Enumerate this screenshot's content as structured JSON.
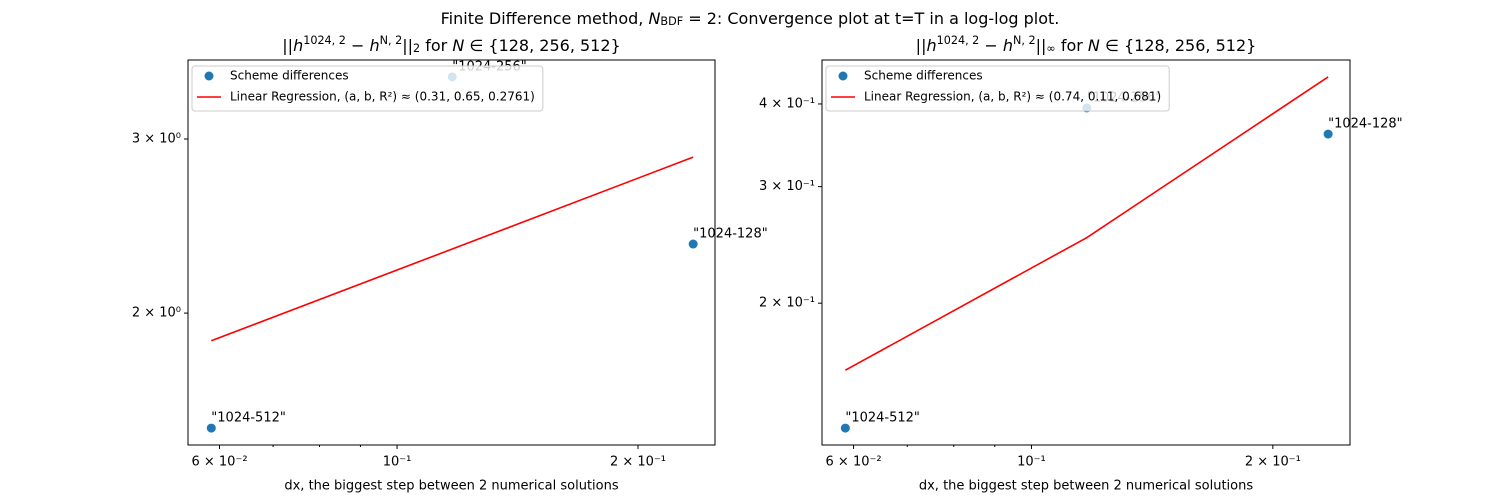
{
  "suptitle": [
    {
      "text": "Finite Difference method, "
    },
    {
      "text": "N",
      "script": "italic"
    },
    {
      "text": "BDF",
      "script": "sub"
    },
    {
      "text": " = 2: Convergence plot at t=T in a log-log plot."
    }
  ],
  "chart_data": [
    {
      "type": "scatter",
      "title": [
        {
          "text": "||"
        },
        {
          "text": "h",
          "script": "italic"
        },
        {
          "text": "1024, 2",
          "script": "sup"
        },
        {
          "text": " − "
        },
        {
          "text": "h",
          "script": "italic"
        },
        {
          "text": "N, 2",
          "script": "sup"
        },
        {
          "text": "||"
        },
        {
          "text": "2",
          "script": "sub"
        },
        {
          "text": " for "
        },
        {
          "text": "N",
          "script": "italic"
        },
        {
          "text": " ∈ {128, 256, 512}"
        }
      ],
      "x_label": "dx, the biggest step between 2 numerical solutions",
      "x": [
        0.0586,
        0.1172,
        0.2344
      ],
      "series": [
        {
          "name": "Scheme differences",
          "color": "#1f77b4",
          "style": "points",
          "values": [
            1.53,
            3.467,
            2.349
          ],
          "point_labels": [
            "\"1024-512\"",
            "\"1024-256\"",
            "\"1024-128\""
          ]
        },
        {
          "name": "Linear Regression, (a, b, R²) ≈ (0.31, 0.65, 0.2761)",
          "color": "#ff0000",
          "style": "line",
          "values": [
            1.875,
            2.322,
            2.876
          ]
        }
      ],
      "xlim": [
        0.0548,
        0.2496
      ],
      "ylim": [
        1.471,
        3.606
      ],
      "log_x": true,
      "log_y": true,
      "xticks": [
        {
          "value": 0.06,
          "label": "6 × 10⁻²"
        },
        {
          "value": 0.1,
          "label": "10⁻¹"
        },
        {
          "value": 0.2,
          "label": "2 × 10⁻¹"
        }
      ],
      "xminorticks": [
        0.07,
        0.08,
        0.09
      ],
      "yticks": [
        {
          "value": 2,
          "label": "2 × 10⁰"
        },
        {
          "value": 3,
          "label": "3 × 10⁰"
        }
      ],
      "legend": "upper left"
    },
    {
      "type": "scatter",
      "title": [
        {
          "text": "||"
        },
        {
          "text": "h",
          "script": "italic"
        },
        {
          "text": "1024, 2",
          "script": "sup"
        },
        {
          "text": " − "
        },
        {
          "text": "h",
          "script": "italic"
        },
        {
          "text": "N, 2",
          "script": "sup"
        },
        {
          "text": "||"
        },
        {
          "text": "∞",
          "script": "sub"
        },
        {
          "text": " for "
        },
        {
          "text": "N",
          "script": "italic"
        },
        {
          "text": " ∈ {128, 256, 512}"
        }
      ],
      "x_label": "dx, the biggest step between 2 numerical solutions",
      "x": [
        0.0586,
        0.1172,
        0.2344
      ],
      "series": [
        {
          "name": "Scheme differences",
          "color": "#1f77b4",
          "style": "points",
          "values": [
            0.1295,
            0.3945,
            0.3602
          ],
          "point_labels": [
            "\"1024-512\"",
            "\"1024-256\"",
            "\"1024-128\""
          ]
        },
        {
          "name": "Linear Regression, (a, b, R²) ≈ (0.74, 0.11, 0.681)",
          "color": "#ff0000",
          "style": "line",
          "values": [
            0.1584,
            0.2512,
            0.4394
          ]
        }
      ],
      "xlim": [
        0.0548,
        0.2496
      ],
      "ylim": [
        0.1221,
        0.4661
      ],
      "log_x": true,
      "log_y": true,
      "xticks": [
        {
          "value": 0.06,
          "label": "6 × 10⁻²"
        },
        {
          "value": 0.1,
          "label": "10⁻¹"
        },
        {
          "value": 0.2,
          "label": "2 × 10⁻¹"
        }
      ],
      "xminorticks": [
        0.07,
        0.08,
        0.09
      ],
      "yticks": [
        {
          "value": 0.2,
          "label": "2 × 10⁻¹"
        },
        {
          "value": 0.3,
          "label": "3 × 10⁻¹"
        },
        {
          "value": 0.4,
          "label": "4 × 10⁻¹"
        }
      ],
      "legend": "upper left"
    }
  ]
}
